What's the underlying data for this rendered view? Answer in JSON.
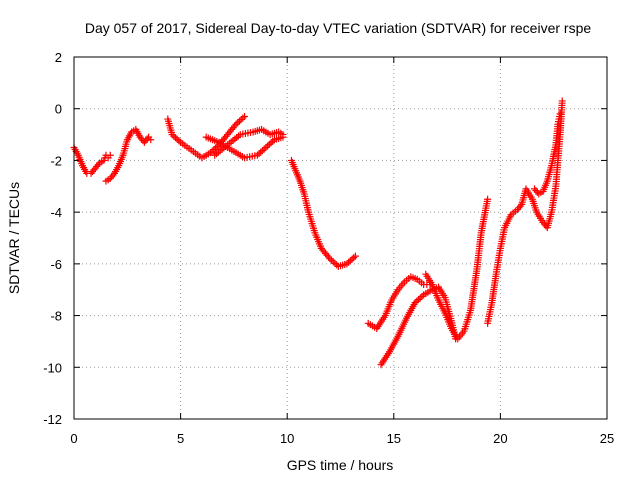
{
  "chart_data": {
    "type": "scatter",
    "title": "Day 057 of 2017, Sidereal Day-to-day VTEC variation (SDTVAR) for receiver rspe",
    "xlabel": "GPS time / hours",
    "ylabel": "SDTVAR / TECUs",
    "xlim": [
      0,
      25
    ],
    "ylim": [
      -12,
      2
    ],
    "xticks": [
      "0",
      "5",
      "10",
      "15",
      "20",
      "25"
    ],
    "yticks": [
      "2",
      "0",
      "-2",
      "-4",
      "-6",
      "-8",
      "-10",
      "-12"
    ],
    "grid": true,
    "marker": "plus",
    "color": "#ff0000",
    "series": [
      {
        "values": [
          [
            0.0,
            -1.5
          ],
          [
            0.2,
            -1.8
          ],
          [
            0.4,
            -2.2
          ],
          [
            0.6,
            -2.5
          ],
          [
            0.8,
            -2.5
          ],
          [
            1.0,
            -2.3
          ],
          [
            1.2,
            -2.1
          ],
          [
            1.4,
            -2.0
          ],
          [
            1.5,
            -1.8
          ],
          [
            1.6,
            -1.9
          ],
          [
            1.7,
            -1.8
          ]
        ]
      },
      {
        "values": [
          [
            1.5,
            -2.8
          ],
          [
            1.7,
            -2.7
          ],
          [
            1.9,
            -2.5
          ],
          [
            2.1,
            -2.2
          ],
          [
            2.3,
            -1.8
          ],
          [
            2.5,
            -1.2
          ],
          [
            2.7,
            -0.9
          ],
          [
            2.9,
            -0.8
          ],
          [
            3.1,
            -1.1
          ],
          [
            3.3,
            -1.3
          ],
          [
            3.5,
            -1.1
          ],
          [
            3.6,
            -1.2
          ]
        ]
      },
      {
        "values": [
          [
            4.4,
            -0.4
          ],
          [
            4.6,
            -1.0
          ],
          [
            5.0,
            -1.3
          ],
          [
            5.5,
            -1.6
          ],
          [
            6.0,
            -1.9
          ],
          [
            6.4,
            -1.7
          ],
          [
            6.8,
            -1.4
          ],
          [
            7.2,
            -1.0
          ],
          [
            7.6,
            -0.6
          ],
          [
            8.0,
            -0.3
          ]
        ]
      },
      {
        "values": [
          [
            6.2,
            -1.1
          ],
          [
            6.8,
            -1.3
          ],
          [
            7.4,
            -1.6
          ],
          [
            8.0,
            -1.9
          ],
          [
            8.6,
            -1.8
          ],
          [
            9.0,
            -1.5
          ],
          [
            9.4,
            -1.2
          ],
          [
            9.8,
            -1.1
          ]
        ]
      },
      {
        "values": [
          [
            6.6,
            -1.8
          ],
          [
            7.2,
            -1.4
          ],
          [
            7.8,
            -1.0
          ],
          [
            8.4,
            -0.9
          ],
          [
            8.8,
            -0.8
          ],
          [
            9.2,
            -1.0
          ],
          [
            9.6,
            -0.9
          ],
          [
            9.8,
            -1.0
          ]
        ]
      },
      {
        "values": [
          [
            10.2,
            -2.0
          ],
          [
            10.4,
            -2.4
          ],
          [
            10.6,
            -2.8
          ],
          [
            10.8,
            -3.3
          ],
          [
            11.0,
            -4.0
          ],
          [
            11.3,
            -4.8
          ],
          [
            11.6,
            -5.4
          ],
          [
            12.0,
            -5.8
          ],
          [
            12.4,
            -6.1
          ],
          [
            12.8,
            -6.0
          ],
          [
            13.2,
            -5.7
          ]
        ]
      },
      {
        "values": [
          [
            13.8,
            -8.3
          ],
          [
            14.2,
            -8.5
          ],
          [
            14.6,
            -8.0
          ],
          [
            14.9,
            -7.4
          ],
          [
            15.2,
            -7.0
          ],
          [
            15.5,
            -6.7
          ],
          [
            15.8,
            -6.5
          ],
          [
            16.1,
            -6.6
          ],
          [
            16.4,
            -6.8
          ],
          [
            16.7,
            -6.8
          ]
        ]
      },
      {
        "values": [
          [
            14.4,
            -9.9
          ],
          [
            14.8,
            -9.4
          ],
          [
            15.2,
            -8.8
          ],
          [
            15.6,
            -8.1
          ],
          [
            16.0,
            -7.5
          ],
          [
            16.4,
            -7.2
          ],
          [
            16.8,
            -7.0
          ],
          [
            17.1,
            -6.9
          ],
          [
            17.4,
            -7.3
          ],
          [
            17.7,
            -8.2
          ],
          [
            17.9,
            -8.9
          ]
        ]
      },
      {
        "values": [
          [
            16.5,
            -6.4
          ],
          [
            16.8,
            -6.8
          ],
          [
            17.1,
            -7.4
          ],
          [
            17.4,
            -7.9
          ],
          [
            17.7,
            -8.5
          ],
          [
            18.0,
            -8.9
          ],
          [
            18.3,
            -8.6
          ],
          [
            18.6,
            -7.8
          ],
          [
            18.9,
            -6.2
          ],
          [
            19.1,
            -4.8
          ],
          [
            19.4,
            -3.5
          ]
        ]
      },
      {
        "values": [
          [
            19.4,
            -8.3
          ],
          [
            19.6,
            -7.5
          ],
          [
            19.8,
            -6.4
          ],
          [
            20.0,
            -5.4
          ],
          [
            20.2,
            -4.6
          ],
          [
            20.5,
            -4.1
          ],
          [
            20.8,
            -3.9
          ],
          [
            21.0,
            -3.7
          ],
          [
            21.2,
            -3.1
          ],
          [
            21.5,
            -3.5
          ],
          [
            21.7,
            -4.0
          ],
          [
            22.0,
            -4.4
          ],
          [
            22.2,
            -4.6
          ],
          [
            22.4,
            -4.0
          ],
          [
            22.6,
            -3.0
          ],
          [
            22.7,
            -2.0
          ],
          [
            22.8,
            -1.0
          ],
          [
            22.9,
            0.3
          ]
        ]
      },
      {
        "values": [
          [
            21.6,
            -3.1
          ],
          [
            21.8,
            -3.3
          ],
          [
            22.0,
            -3.2
          ],
          [
            22.2,
            -2.8
          ],
          [
            22.4,
            -2.2
          ],
          [
            22.6,
            -1.4
          ],
          [
            22.7,
            -0.6
          ],
          [
            22.8,
            -0.2
          ]
        ]
      }
    ]
  }
}
